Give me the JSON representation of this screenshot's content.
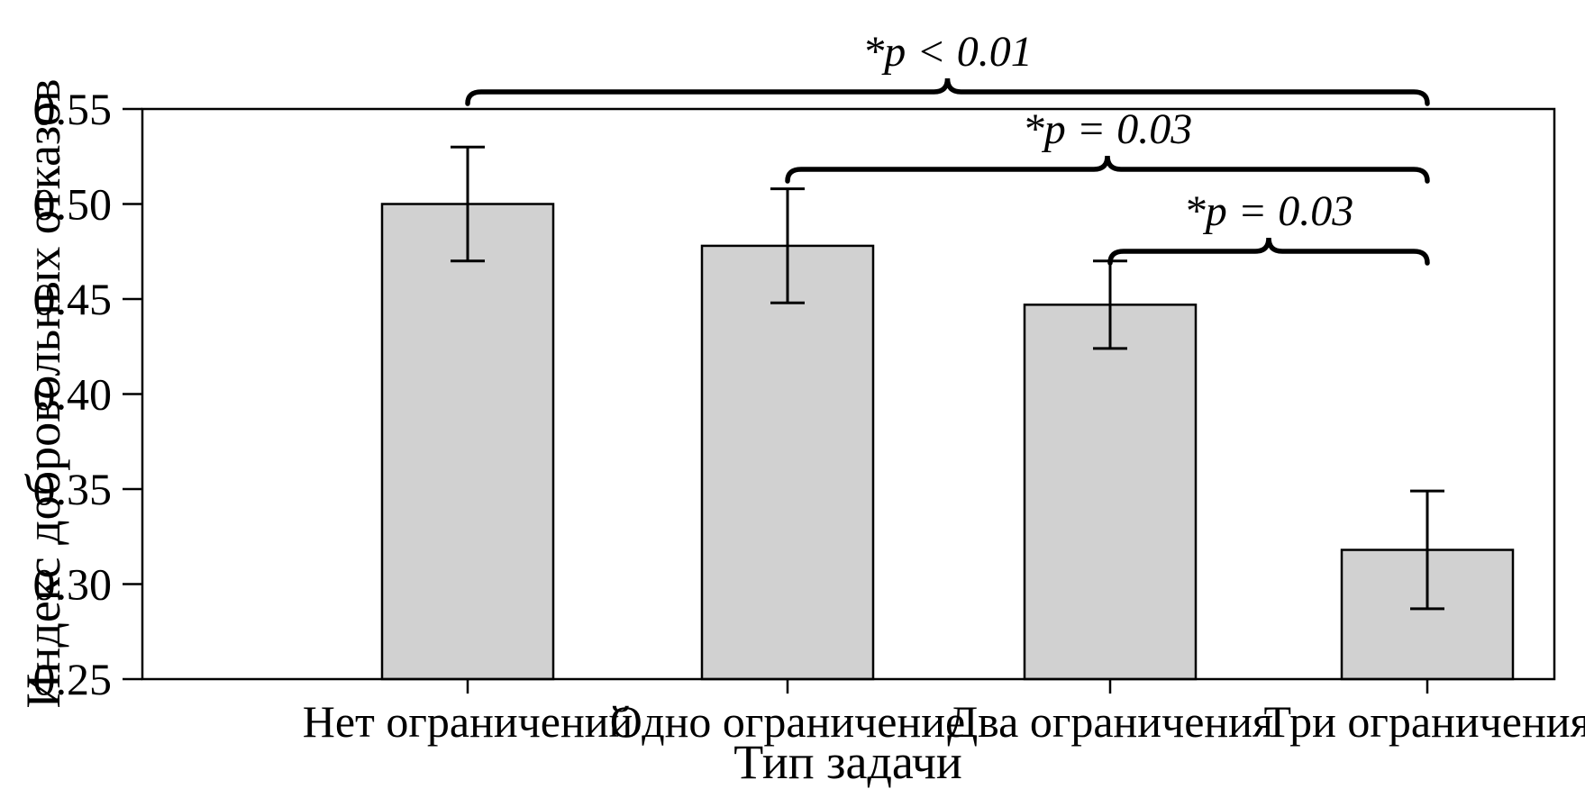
{
  "figure": {
    "background": "#ffffff",
    "text_color": "#000000"
  },
  "chart_data": {
    "type": "bar",
    "categories": [
      "Нет ограничений",
      "Одно ограничение",
      "Два ограничения",
      "Три ограничения"
    ],
    "values": [
      0.5,
      0.478,
      0.447,
      0.318
    ],
    "errors": [
      0.03,
      0.03,
      0.023,
      0.031
    ],
    "title": "",
    "xlabel": "Тип задачи",
    "ylabel": "Индекс добровольных отказов",
    "ylim": [
      0.25,
      0.55
    ],
    "ytick_step": 0.05,
    "ytick_labels": [
      "0.25",
      "0.30",
      "0.35",
      "0.40",
      "0.45",
      "0.50",
      "0.55"
    ],
    "grid": false,
    "legend": null,
    "bar_color": "#d1d1d1",
    "bar_border_color": "#000000",
    "axis_color": "#000000",
    "error_bar_color": "#000000",
    "significance_brackets": [
      {
        "from": 0,
        "to": 3,
        "label": "*p < 0.01"
      },
      {
        "from": 1,
        "to": 3,
        "label": "*p = 0.03"
      },
      {
        "from": 2,
        "to": 3,
        "label": "*p = 0.03"
      }
    ]
  }
}
